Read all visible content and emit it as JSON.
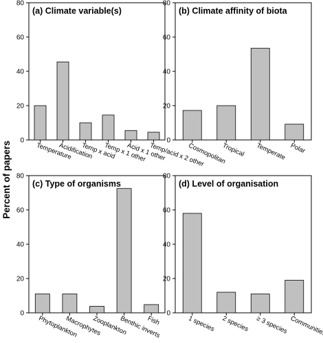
{
  "figure": {
    "ylabel": "Percent of papers",
    "bar_color": "#c0c0c0"
  },
  "chart_data": [
    {
      "type": "bar",
      "title": "(a) Climate variable(s)",
      "categories": [
        "Temperature",
        "Acidification",
        "Temp x acid",
        "Temp x 1 other",
        "Acid x 1 other",
        "Temp/acid x 2 other"
      ],
      "values": [
        20,
        45.5,
        10,
        14.5,
        5.5,
        4.5
      ],
      "ylim": [
        0,
        80
      ],
      "yticks": [
        0,
        20,
        40,
        60,
        80
      ],
      "ylabel": "Percent of papers",
      "grid": false,
      "legend": "none"
    },
    {
      "type": "bar",
      "title": "(b) Climate affinity of biota",
      "categories": [
        "Cosmopolitan",
        "Tropical",
        "Temperate",
        "Polar"
      ],
      "values": [
        17.2,
        20,
        53.5,
        9.2
      ],
      "ylim": [
        0,
        80
      ],
      "yticks": [
        0,
        20,
        40,
        60,
        80
      ],
      "ylabel": "Percent of papers",
      "grid": false,
      "legend": "none"
    },
    {
      "type": "bar",
      "title": "(c) Type of organisms",
      "categories": [
        "Phytoplankton",
        "Macrophytes",
        "Zooplankton",
        "Benthic inverts",
        "Fish"
      ],
      "values": [
        11,
        11,
        3.8,
        72.5,
        4.8
      ],
      "ylim": [
        0,
        80
      ],
      "yticks": [
        0,
        20,
        40,
        60,
        80
      ],
      "ylabel": "Percent of papers",
      "grid": false,
      "legend": "none"
    },
    {
      "type": "bar",
      "title": "(d) Level of organisation",
      "categories": [
        "1 species",
        "2 species",
        "≥ 3 species",
        "Communities"
      ],
      "values": [
        58,
        12,
        11,
        19
      ],
      "ylim": [
        0,
        80
      ],
      "yticks": [
        0,
        20,
        40,
        60,
        80
      ],
      "ylabel": "Percent of papers",
      "grid": false,
      "legend": "none"
    }
  ]
}
